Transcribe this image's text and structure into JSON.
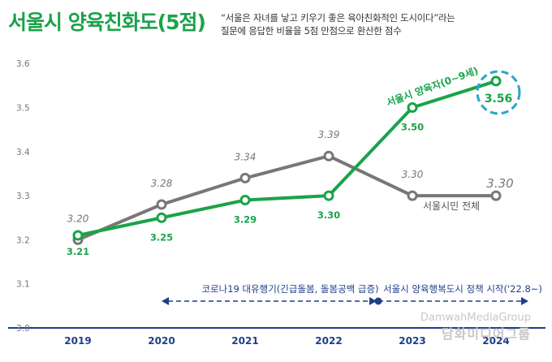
{
  "header": {
    "title": "서울시 양육친화도(5점)",
    "subtitle_line1": "“서울은 자녀를 낳고 키우기 좋은 육아친화적인 도시이다”라는",
    "subtitle_line2": "질문에 응답한 비율을 5점 만점으로 환산한 점수"
  },
  "chart_data": {
    "type": "line",
    "title": "서울시 양육친화도(5점)",
    "categories": [
      "2019",
      "2020",
      "2021",
      "2022",
      "2023",
      "2024"
    ],
    "ylim": [
      3.0,
      3.6
    ],
    "yticks": [
      "3.0",
      "3.1",
      "3.2",
      "3.3",
      "3.4",
      "3.5",
      "3.6"
    ],
    "grid": false,
    "series": [
      {
        "name": "서울시민 전체",
        "color": "#777777",
        "values": [
          3.2,
          3.28,
          3.34,
          3.39,
          3.3,
          3.3
        ],
        "labels": [
          "3.20",
          "3.28",
          "3.34",
          "3.39",
          "3.30",
          "3.30"
        ]
      },
      {
        "name": "서울시 양육자(0~9세)",
        "color": "#1aa34a",
        "values": [
          3.21,
          3.25,
          3.29,
          3.3,
          3.5,
          3.56
        ],
        "labels": [
          "3.21",
          "3.25",
          "3.29",
          "3.30",
          "3.50",
          "3.56"
        ]
      }
    ],
    "annotations": [
      {
        "text": "코로나19 대유행기(긴급돌봄, 돌봄공백 급증)",
        "from": "2020",
        "to": "2023"
      },
      {
        "text": "서울시 양육행복도시 정책 시작('22.8~)",
        "from": "2023",
        "to": "2024"
      }
    ]
  },
  "watermark": {
    "line1": "DamwahMediaGroup",
    "line2": "담화미디어그룹"
  }
}
